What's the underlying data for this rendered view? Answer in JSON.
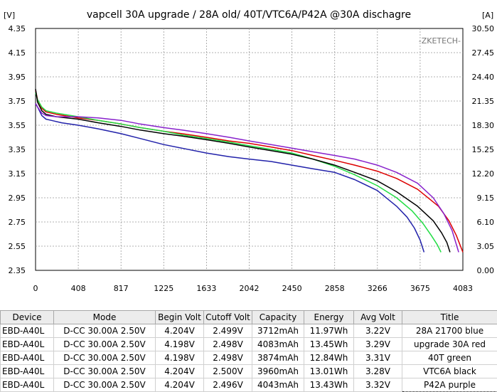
{
  "chart_data": {
    "type": "line",
    "title": "vapcell 30A upgrade / 28A old/ 40T/VTC6A/P42A @30A dischagre",
    "watermark": "-ZKETECH-",
    "y_left_unit": "[V]",
    "y_right_unit": "[A]",
    "x_ticks": [
      "0",
      "408",
      "817",
      "1225",
      "1633",
      "2042",
      "2450",
      "2858",
      "3266",
      "3675",
      "4083"
    ],
    "y_left_ticks": [
      "4.35",
      "4.15",
      "3.95",
      "3.75",
      "3.55",
      "3.35",
      "3.15",
      "2.95",
      "2.75",
      "2.55",
      "2.35"
    ],
    "y_right_ticks": [
      "30.50",
      "27.45",
      "24.40",
      "21.35",
      "18.30",
      "15.25",
      "12.20",
      "9.15",
      "6.10",
      "3.05",
      "0.00"
    ],
    "xlim": [
      0,
      4083
    ],
    "ylim": [
      2.35,
      4.35
    ],
    "grid": true,
    "series": [
      {
        "name": "28A 21700 blue",
        "color": "#2222aa",
        "x": [
          0,
          20,
          60,
          100,
          150,
          250,
          408,
          600,
          817,
          1000,
          1225,
          1400,
          1633,
          1850,
          2042,
          2250,
          2450,
          2650,
          2858,
          3050,
          3266,
          3450,
          3550,
          3620,
          3675,
          3712
        ],
        "y": [
          3.73,
          3.7,
          3.63,
          3.6,
          3.59,
          3.57,
          3.55,
          3.52,
          3.48,
          3.44,
          3.39,
          3.36,
          3.32,
          3.29,
          3.27,
          3.25,
          3.22,
          3.19,
          3.16,
          3.1,
          3.01,
          2.88,
          2.79,
          2.7,
          2.6,
          2.5
        ]
      },
      {
        "name": "upgrade 30A red",
        "color": "#dd0000",
        "x": [
          0,
          20,
          60,
          100,
          200,
          408,
          600,
          817,
          1000,
          1225,
          1400,
          1633,
          1850,
          2042,
          2250,
          2450,
          2650,
          2858,
          3050,
          3266,
          3450,
          3650,
          3850,
          3950,
          4020,
          4083
        ],
        "y": [
          3.84,
          3.76,
          3.69,
          3.66,
          3.64,
          3.61,
          3.59,
          3.56,
          3.53,
          3.5,
          3.48,
          3.45,
          3.42,
          3.4,
          3.37,
          3.34,
          3.3,
          3.26,
          3.22,
          3.17,
          3.11,
          3.02,
          2.88,
          2.76,
          2.64,
          2.5
        ]
      },
      {
        "name": "40T green",
        "color": "#22dd44",
        "x": [
          0,
          20,
          60,
          100,
          200,
          408,
          600,
          817,
          1000,
          1225,
          1400,
          1633,
          1850,
          2042,
          2250,
          2450,
          2650,
          2858,
          3050,
          3266,
          3450,
          3600,
          3700,
          3780,
          3840,
          3874
        ],
        "y": [
          3.82,
          3.76,
          3.7,
          3.67,
          3.65,
          3.62,
          3.59,
          3.56,
          3.53,
          3.5,
          3.47,
          3.44,
          3.41,
          3.38,
          3.35,
          3.32,
          3.27,
          3.21,
          3.14,
          3.05,
          2.95,
          2.84,
          2.74,
          2.64,
          2.56,
          2.5
        ]
      },
      {
        "name": "VTC6A black",
        "color": "#000000",
        "x": [
          0,
          20,
          60,
          100,
          200,
          408,
          600,
          817,
          1000,
          1225,
          1400,
          1633,
          1850,
          2042,
          2250,
          2450,
          2650,
          2858,
          3050,
          3266,
          3450,
          3650,
          3800,
          3880,
          3930,
          3960
        ],
        "y": [
          3.85,
          3.74,
          3.67,
          3.64,
          3.62,
          3.6,
          3.57,
          3.54,
          3.51,
          3.48,
          3.46,
          3.43,
          3.4,
          3.37,
          3.34,
          3.31,
          3.27,
          3.22,
          3.16,
          3.09,
          3.0,
          2.88,
          2.76,
          2.66,
          2.58,
          2.5
        ]
      },
      {
        "name": "P42A purple",
        "color": "#8822cc",
        "x": [
          0,
          20,
          60,
          100,
          200,
          408,
          600,
          817,
          1000,
          1225,
          1400,
          1633,
          1850,
          2042,
          2250,
          2450,
          2650,
          2858,
          3050,
          3266,
          3450,
          3650,
          3800,
          3900,
          3980,
          4043
        ],
        "y": [
          3.73,
          3.7,
          3.65,
          3.63,
          3.62,
          3.62,
          3.61,
          3.59,
          3.56,
          3.53,
          3.51,
          3.48,
          3.45,
          3.42,
          3.39,
          3.36,
          3.33,
          3.3,
          3.27,
          3.22,
          3.16,
          3.07,
          2.95,
          2.82,
          2.68,
          2.5
        ]
      }
    ]
  },
  "table": {
    "headers": [
      "Device",
      "Mode",
      "Begin Volt",
      "Cutoff Volt",
      "Capacity",
      "Energy",
      "Avg Volt",
      "Title"
    ],
    "rows": [
      [
        "EBD-A40L",
        "D-CC  30.00A  2.50V",
        "4.204V",
        "2.499V",
        "3712mAh",
        "11.97Wh",
        "3.22V",
        "28A 21700 blue"
      ],
      [
        "EBD-A40L",
        "D-CC  30.00A  2.50V",
        "4.198V",
        "2.498V",
        "4083mAh",
        "13.45Wh",
        "3.29V",
        "upgrade 30A red"
      ],
      [
        "EBD-A40L",
        "D-CC  30.00A  2.50V",
        "4.198V",
        "2.498V",
        "3874mAh",
        "12.84Wh",
        "3.31V",
        "40T green"
      ],
      [
        "EBD-A40L",
        "D-CC  30.00A  2.50V",
        "4.204V",
        "2.500V",
        "3960mAh",
        "13.01Wh",
        "3.28V",
        "VTC6A black"
      ],
      [
        "EBD-A40L",
        "D-CC  30.00A  2.50V",
        "4.204V",
        "2.496V",
        "4043mAh",
        "13.43Wh",
        "3.32V",
        "P42A purple"
      ]
    ]
  }
}
